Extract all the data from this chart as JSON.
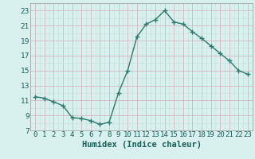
{
  "x": [
    0,
    1,
    2,
    3,
    4,
    5,
    6,
    7,
    8,
    9,
    10,
    11,
    12,
    13,
    14,
    15,
    16,
    17,
    18,
    19,
    20,
    21,
    22,
    23
  ],
  "y": [
    11.5,
    11.3,
    10.8,
    10.3,
    8.7,
    8.6,
    8.3,
    7.8,
    8.1,
    12.0,
    15.0,
    19.5,
    21.2,
    21.8,
    23.0,
    21.5,
    21.2,
    20.2,
    19.3,
    18.3,
    17.3,
    16.3,
    15.0,
    14.5
  ],
  "line_color": "#2d7a6e",
  "marker": "+",
  "markersize": 4,
  "linewidth": 1.0,
  "bg_color": "#d8f0ee",
  "grid_color_major": "#d4b8c0",
  "grid_color_minor": "#c8ddd8",
  "xlim": [
    -0.5,
    23.5
  ],
  "ylim": [
    7,
    24
  ],
  "yticks": [
    7,
    9,
    11,
    13,
    15,
    17,
    19,
    21,
    23
  ],
  "xtick_labels": [
    "0",
    "1",
    "2",
    "3",
    "4",
    "5",
    "6",
    "7",
    "8",
    "9",
    "10",
    "11",
    "12",
    "13",
    "14",
    "15",
    "16",
    "17",
    "18",
    "19",
    "20",
    "21",
    "22",
    "23"
  ],
  "xlabel": "Humidex (Indice chaleur)",
  "xlabel_color": "#1a5f5a",
  "xlabel_fontsize": 7.5,
  "tick_fontsize": 6.5,
  "tick_color": "#1a5f5a"
}
